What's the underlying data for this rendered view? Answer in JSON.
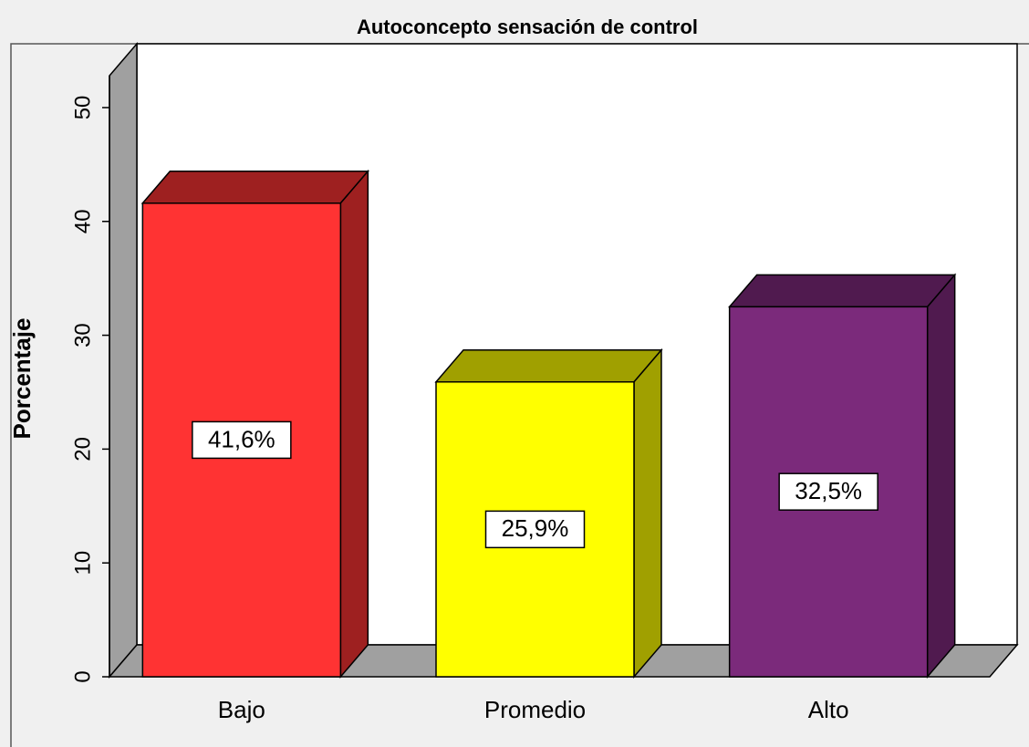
{
  "chart_data": {
    "type": "bar3d",
    "title": "Autoconcepto sensación de control",
    "y_label": "Porcentaje",
    "categories": [
      "Bajo",
      "Promedio",
      "Alto"
    ],
    "values": [
      41.6,
      25.9,
      32.5
    ],
    "value_labels": [
      "41,6%",
      "25,9%",
      "32,5%"
    ],
    "colors": [
      "#ff3333",
      "#ffff00",
      "#7b2a7b"
    ],
    "side_colors": [
      "#9e2020",
      "#a0a000",
      "#501a4f"
    ],
    "ylim": [
      0,
      52.8
    ],
    "yticks": [
      0,
      10,
      20,
      30,
      40,
      50
    ]
  }
}
